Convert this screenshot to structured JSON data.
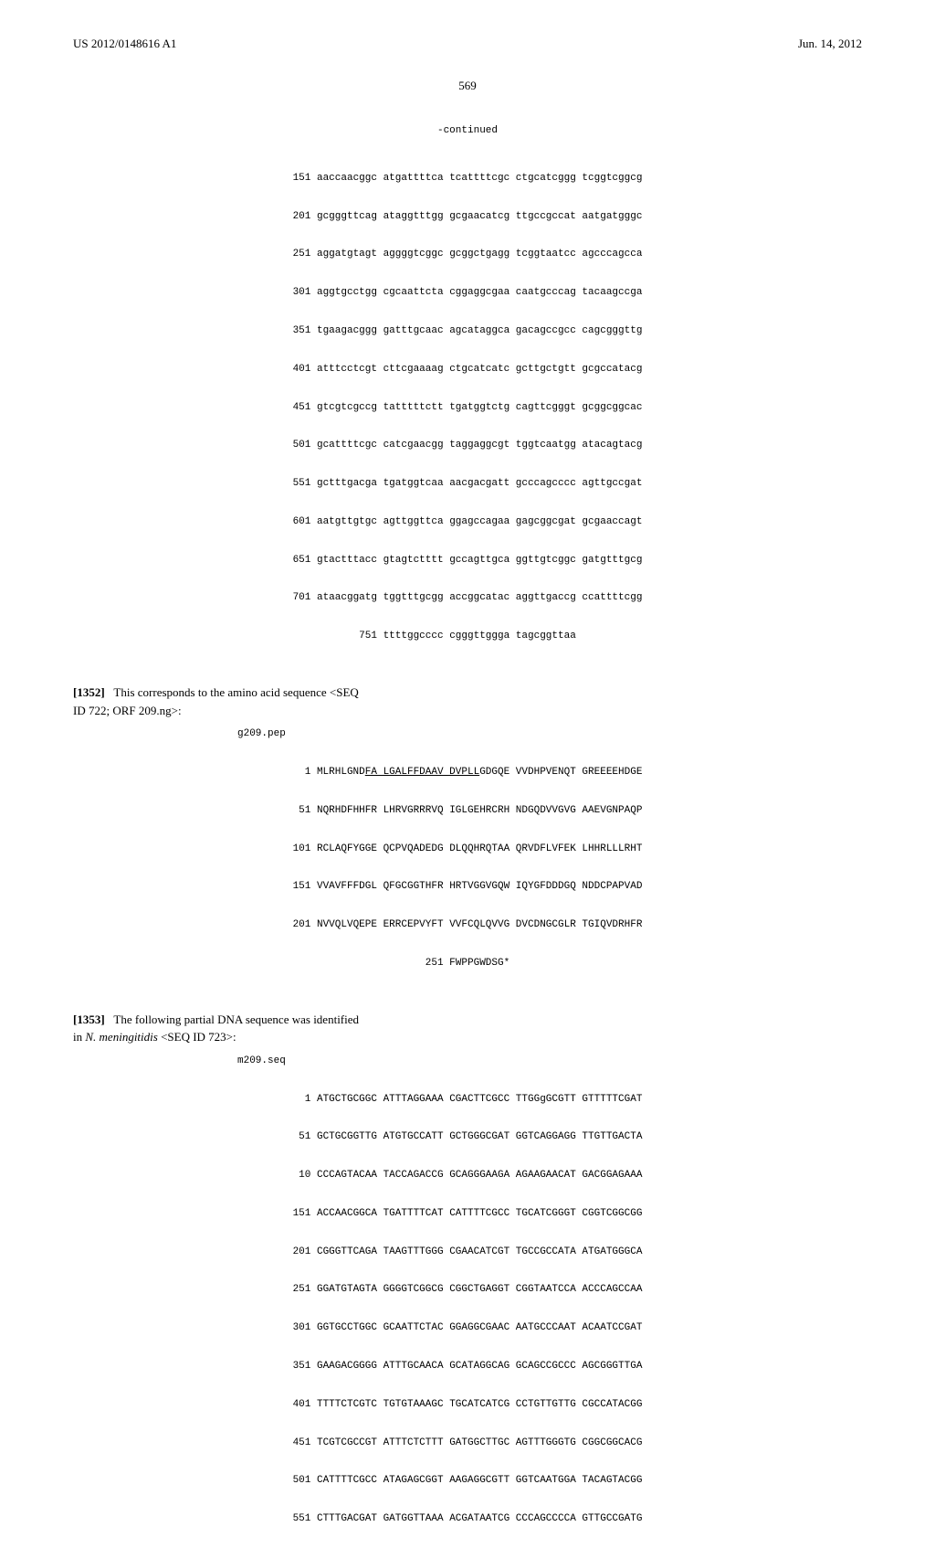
{
  "header": {
    "pub_number": "US 2012/0148616 A1",
    "pub_date": "Jun. 14, 2012"
  },
  "page_number": "569",
  "continued_label": "-continued",
  "block1": {
    "lines": [
      "151 aaccaacggc atgattttca tcattttcgc ctgcatcggg tcggtcggcg",
      "201 gcgggttcag ataggtttgg gcgaacatcg ttgccgccat aatgatgggc",
      "251 aggatgtagt aggggtcggc gcggctgagg tcggtaatcc agcccagcca",
      "301 aggtgcctgg cgcaattcta cggaggcgaa caatgcccag tacaagccga",
      "351 tgaagacggg gatttgcaac agcataggca gacagccgcc cagcgggttg",
      "401 atttcctcgt cttcgaaaag ctgcatcatc gcttgctgtt gcgccatacg",
      "451 gtcgtcgccg tatttttctt tgatggtctg cagttcgggt gcggcggcac",
      "501 gcattttcgc catcgaacgg taggaggcgt tggtcaatgg atacagtacg",
      "551 gctttgacga tgatggtcaa aacgacgatt gcccagcccc agttgccgat",
      "601 aatgttgtgc agttggttca ggagccagaa gagcggcgat gcgaaccagt",
      "651 gtactttacc gtagtctttt gccagttgca ggttgtcggc gatgtttgcg",
      "701 ataacggatg tggtttgcgg accggcatac aggttgaccg ccattttcgg",
      "751 ttttggcccc cgggttggga tagcggttaa"
    ]
  },
  "para1352": {
    "num": "[1352]",
    "text_before": "This corresponds to the amino acid sequence <SEQ",
    "text_after": "ID 722; ORF 209.ng>:"
  },
  "block2": {
    "header": "g209.pep",
    "lines": [
      "  1 MLRHLGND",
      " VVDHPVENQT GREEEEHDGE",
      " 51 NQRHDFHHFR LHRVGRRRVQ IGLGEHRCRH NDGQDVVGVG AAEVGNPAQP",
      "101 RCLAQFYGGE QCPVQADEDG DLQQHRQTAA QRVDFLVFEK LHHRLLLRHT",
      "151 VVAVFFFDGL QFGCGGTHFR HRTVGGVGQW IQYGFDDDGQ NDDCPAPVAD",
      "201 NVVQLVQEPE ERRCEPVYFT VVFCQLQVVG DVCDNGCGLR TGIQVDRHFR",
      "251 FWPPGWDSG*"
    ],
    "underlined": "FA LGALFFDAAV DVPLL",
    "after_underline": "GDGQE"
  },
  "para1353": {
    "num": "[1353]",
    "text_before": "The following partial DNA sequence was identified",
    "text_italic": "N. meningitidis",
    "text_in": "in ",
    "text_after": " <SEQ ID 723>:"
  },
  "block3": {
    "header": "m209.seq",
    "lines": [
      "  1 ATGCTGCGGC ATTTAGGAAA CGACTTCGCC TTGGgGCGTT GTTTTTCGAT",
      " 51 GCTGCGGTTG ATGTGCCATT GCTGGGCGAT GGTCAGGAGG TTGTTGACTA",
      " 10 CCCAGTACAA TACCAGACCG GCAGGGAAGA AGAAGAACAT GACGGAGAAA",
      "151 ACCAACGGCA TGATTTTCAT CATTTTCGCC TGCATCGGGT CGGTCGGCGG",
      "201 CGGGTTCAGA TAAGTTTGGG CGAACATCGT TGCCGCCATA ATGATGGGCA",
      "251 GGATGTAGTA GGGGTCGGCG CGGCTGAGGT CGGTAATCCA ACCCAGCCAA",
      "301 GGTGCCTGGC GCAATTCTAC GGAGGCGAAC AATGCCCAAT ACAATCCGAT",
      "351 GAAGACGGGG ATTTGCAACA GCATAGGCAG GCAGCCGCCC AGCGGGTTGA",
      "401 TTTTCTCGTC TGTGTAAAGC TGCATCATCG CCTGTTGTTG CGCCATACGG",
      "451 TCGTCGCCGT ATTTCTCTTT GATGGCTTGC AGTTTGGGTG CGGCGGCACG",
      "501 CATTTTCGCC ATAGAGCGGT AAGAGGCGTT GGTCAATGGA TACAGTACGG",
      "551 CTTTGACGAT GATGGTTAAA ACGATAATCG CCCAGCCCCA GTTGCCGATG"
    ]
  },
  "colors": {
    "text": "#000000",
    "background": "#ffffff"
  },
  "fonts": {
    "body": "Georgia, Times New Roman, serif",
    "mono": "Courier New, monospace",
    "body_size": 13,
    "mono_size": 11
  }
}
